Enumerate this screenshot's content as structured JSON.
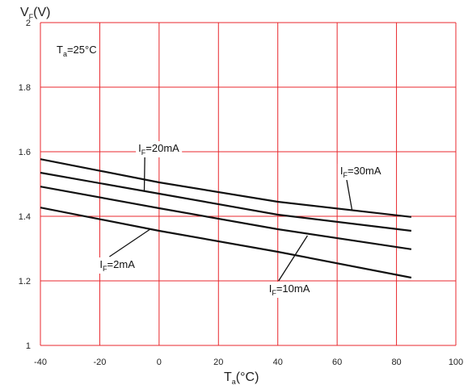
{
  "chart_data": {
    "type": "line",
    "x_axis": {
      "title_main": "T",
      "title_sub": "a",
      "title_unit": "(°C)",
      "min": -40,
      "max": 100,
      "ticks": [
        -40,
        -20,
        0,
        20,
        40,
        60,
        80,
        100
      ],
      "tick_labels": [
        "-40",
        "-20",
        "0",
        "20",
        "40",
        "60",
        "80",
        "100"
      ]
    },
    "y_axis": {
      "title_main": "V",
      "title_sub": "F",
      "title_unit": "(V)",
      "min": 1,
      "max": 2,
      "ticks": [
        1,
        1.2,
        1.4,
        1.6,
        1.8,
        2
      ],
      "tick_labels": [
        "1",
        "1.2",
        "1.4",
        "1.6",
        "1.8",
        "2"
      ]
    },
    "grid": true,
    "colors": {
      "grid": "#e8272c",
      "line": "#111111"
    },
    "condition": {
      "main": "T",
      "sub": "a",
      "rest": "=25°C"
    },
    "series": [
      {
        "name": "IF=30mA",
        "x": [
          -40,
          0,
          40,
          85
        ],
        "y": [
          1.577,
          1.505,
          1.445,
          1.398
        ]
      },
      {
        "name": "IF=20mA",
        "x": [
          -40,
          0,
          40,
          85
        ],
        "y": [
          1.535,
          1.47,
          1.405,
          1.355
        ]
      },
      {
        "name": "IF=10mA",
        "x": [
          -40,
          0,
          40,
          85
        ],
        "y": [
          1.492,
          1.425,
          1.36,
          1.298
        ]
      },
      {
        "name": "IF=2mA",
        "x": [
          -40,
          0,
          40,
          85
        ],
        "y": [
          1.427,
          1.355,
          1.29,
          1.21
        ]
      }
    ],
    "annotations": [
      {
        "main": "I",
        "sub": "F",
        "rest": "=20mA",
        "series": 1,
        "label_x": -7,
        "label_y": 1.6,
        "point_x": -5,
        "point_y": 1.478
      },
      {
        "main": "I",
        "sub": "F",
        "rest": "=30mA",
        "series": 0,
        "label_x": 61,
        "label_y": 1.53,
        "point_x": 65,
        "point_y": 1.42
      },
      {
        "main": "I",
        "sub": "F",
        "rest": "=2mA",
        "series": 3,
        "label_x": -20,
        "label_y": 1.24,
        "point_x": -3,
        "point_y": 1.36
      },
      {
        "main": "I",
        "sub": "F",
        "rest": "=10mA",
        "series": 2,
        "label_x": 37,
        "label_y": 1.165,
        "point_x": 50,
        "point_y": 1.34
      }
    ]
  }
}
